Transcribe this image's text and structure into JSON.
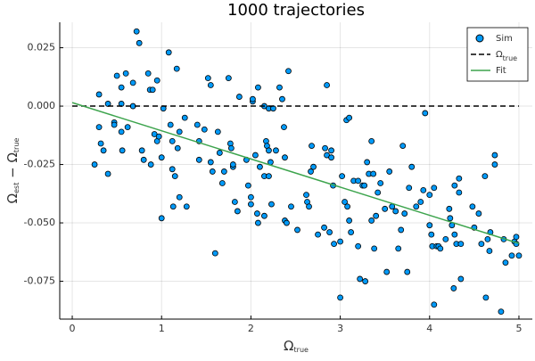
{
  "chart_data": {
    "type": "scatter",
    "title": "1000 trajectories",
    "x_label": [
      "Ω",
      "true"
    ],
    "y_label": [
      "Ω",
      "est",
      " − Ω",
      "true"
    ],
    "xlim": [
      -0.14,
      5.15
    ],
    "ylim": [
      -0.0912,
      0.0359
    ],
    "xticks": [
      0,
      1,
      2,
      3,
      4,
      5
    ],
    "yticks": [
      {
        "value": -0.075,
        "label": "-0.075"
      },
      {
        "value": -0.05,
        "label": "-0.050"
      },
      {
        "value": -0.025,
        "label": "-0.025"
      },
      {
        "value": 0,
        "label": "0.000"
      },
      0.025
    ],
    "grid": true,
    "legend": "top-right",
    "series": [
      {
        "name": [
          "Sim"
        ],
        "type": "scatter",
        "color": "#009af9",
        "x": [
          0.25,
          0.3,
          0.3,
          0.32,
          0.35,
          0.4,
          0.4,
          0.47,
          0.47,
          0.5,
          0.55,
          0.55,
          0.55,
          0.56,
          0.6,
          0.62,
          0.68,
          0.68,
          0.72,
          0.75,
          0.78,
          0.8,
          0.85,
          0.87,
          0.88,
          0.9,
          0.92,
          0.95,
          0.95,
          0.97,
          1.0,
          1.0,
          1.02,
          1.08,
          1.1,
          1.12,
          1.12,
          1.13,
          1.15,
          1.17,
          1.18,
          1.2,
          1.2,
          1.26,
          1.28,
          1.4,
          1.42,
          1.42,
          1.48,
          1.52,
          1.55,
          1.55,
          1.57,
          1.6,
          1.63,
          1.65,
          1.68,
          1.7,
          1.75,
          1.77,
          1.78,
          1.8,
          1.8,
          1.82,
          1.85,
          1.87,
          1.95,
          1.97,
          2.0,
          2.0,
          2.02,
          2.02,
          2.05,
          2.07,
          2.08,
          2.08,
          2.1,
          2.15,
          2.15,
          2.15,
          2.17,
          2.18,
          2.2,
          2.2,
          2.2,
          2.22,
          2.23,
          2.25,
          2.28,
          2.32,
          2.35,
          2.37,
          2.38,
          2.38,
          2.4,
          2.42,
          2.45,
          2.52,
          2.62,
          2.63,
          2.65,
          2.67,
          2.68,
          2.7,
          2.75,
          2.82,
          2.83,
          2.85,
          2.85,
          2.88,
          2.9,
          2.9,
          2.92,
          2.93,
          3.0,
          3.0,
          3.02,
          3.05,
          3.07,
          3.08,
          3.1,
          3.1,
          3.12,
          3.15,
          3.2,
          3.2,
          3.22,
          3.25,
          3.27,
          3.28,
          3.3,
          3.32,
          3.35,
          3.35,
          3.37,
          3.38,
          3.4,
          3.42,
          3.45,
          3.5,
          3.52,
          3.55,
          3.58,
          3.62,
          3.65,
          3.68,
          3.7,
          3.72,
          3.75,
          3.77,
          3.8,
          3.85,
          3.9,
          3.93,
          3.95,
          4.0,
          4.0,
          4.02,
          4.03,
          4.05,
          4.05,
          4.08,
          4.1,
          4.12,
          4.18,
          4.22,
          4.23,
          4.25,
          4.27,
          4.28,
          4.28,
          4.3,
          4.33,
          4.33,
          4.35,
          4.35,
          4.48,
          4.5,
          4.55,
          4.58,
          4.62,
          4.63,
          4.65,
          4.67,
          4.68,
          4.73,
          4.73,
          4.8,
          4.83,
          4.85,
          4.92,
          4.95,
          4.97,
          4.97,
          5.0
        ],
        "values": [
          -0.025,
          0.005,
          -0.009,
          -0.016,
          -0.019,
          0.001,
          -0.029,
          -0.007,
          -0.008,
          0.013,
          0.008,
          0.001,
          -0.011,
          -0.019,
          0.014,
          -0.009,
          0.0,
          0.01,
          0.032,
          0.027,
          -0.019,
          -0.023,
          0.014,
          0.007,
          -0.025,
          0.007,
          -0.012,
          -0.015,
          0.011,
          -0.013,
          -0.022,
          -0.048,
          -0.001,
          0.023,
          -0.008,
          -0.015,
          -0.027,
          -0.043,
          -0.03,
          0.016,
          -0.018,
          -0.039,
          -0.011,
          -0.005,
          -0.043,
          -0.008,
          -0.015,
          -0.023,
          -0.01,
          0.012,
          0.009,
          -0.024,
          -0.028,
          -0.063,
          -0.011,
          -0.02,
          -0.033,
          -0.028,
          0.012,
          -0.016,
          -0.018,
          -0.026,
          -0.025,
          -0.041,
          -0.045,
          0.004,
          -0.023,
          -0.034,
          -0.039,
          -0.042,
          0.002,
          0.003,
          -0.021,
          -0.046,
          -0.05,
          0.008,
          -0.026,
          -0.047,
          -0.03,
          0.0,
          -0.015,
          -0.017,
          -0.019,
          -0.001,
          -0.03,
          -0.024,
          -0.042,
          -0.001,
          -0.019,
          0.008,
          0.003,
          -0.009,
          -0.022,
          -0.049,
          -0.05,
          0.015,
          -0.043,
          -0.053,
          -0.038,
          -0.041,
          -0.043,
          -0.028,
          -0.017,
          -0.026,
          -0.055,
          -0.052,
          -0.018,
          -0.021,
          0.009,
          -0.054,
          -0.019,
          -0.022,
          -0.034,
          -0.059,
          -0.058,
          -0.082,
          -0.03,
          -0.041,
          -0.006,
          -0.043,
          -0.005,
          -0.049,
          -0.054,
          -0.032,
          -0.032,
          -0.06,
          -0.074,
          -0.034,
          -0.034,
          -0.075,
          -0.024,
          -0.029,
          -0.015,
          -0.049,
          -0.029,
          -0.061,
          -0.047,
          -0.037,
          -0.033,
          -0.044,
          -0.071,
          -0.028,
          -0.043,
          -0.045,
          -0.061,
          -0.053,
          -0.017,
          -0.046,
          -0.071,
          -0.035,
          -0.026,
          -0.043,
          -0.041,
          -0.036,
          -0.003,
          -0.038,
          -0.051,
          -0.055,
          -0.06,
          -0.085,
          -0.035,
          -0.06,
          -0.06,
          -0.061,
          -0.057,
          -0.044,
          -0.048,
          -0.051,
          -0.078,
          -0.034,
          -0.055,
          -0.059,
          -0.031,
          -0.037,
          -0.059,
          -0.074,
          -0.043,
          -0.052,
          -0.046,
          -0.059,
          -0.03,
          -0.082,
          -0.057,
          -0.062,
          -0.054,
          -0.021,
          -0.025,
          -0.088,
          -0.057,
          -0.067,
          -0.064,
          -0.058,
          -0.059,
          -0.056,
          -0.064
        ]
      },
      {
        "name": [
          "Ω",
          "true"
        ],
        "type": "line",
        "color": "#000000",
        "dash": true,
        "x": [
          0,
          5
        ],
        "values": [
          0,
          0
        ]
      },
      {
        "name": [
          "Fit"
        ],
        "type": "line",
        "color": "#3da44d",
        "dash": false,
        "x": [
          0,
          5
        ],
        "values": [
          0.0015,
          -0.0588
        ]
      }
    ]
  }
}
